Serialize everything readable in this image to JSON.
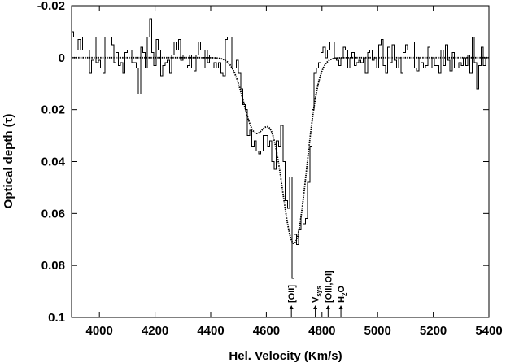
{
  "chart_data": {
    "type": "line",
    "title": "",
    "xlabel": "Hel. Velocity (Km/s)",
    "ylabel": "Optical depth (τ)",
    "xlim": [
      3900,
      5400
    ],
    "ylim": [
      -0.02,
      0.1
    ],
    "y_inverted": true,
    "grid": false,
    "x_ticks": [
      4000,
      4200,
      4400,
      4600,
      4800,
      5000,
      5200,
      5400
    ],
    "y_ticks": [
      -0.02,
      0,
      0.02,
      0.04,
      0.06,
      0.08,
      0.1
    ],
    "x_tick_labels": [
      "4000",
      "4200",
      "4400",
      "4600",
      "4800",
      "5000",
      "5200",
      "5400"
    ],
    "y_tick_labels": [
      "-0.02",
      "0",
      "0.02",
      "0.04",
      "0.06",
      "0.08",
      "0.1"
    ],
    "series": [
      {
        "kind": "histogram",
        "x": [
          3900,
          3908,
          3916,
          3924,
          3932,
          3940,
          3948,
          3956,
          3964,
          3972,
          3980,
          3988,
          3996,
          4004,
          4012,
          4020,
          4028,
          4036,
          4044,
          4052,
          4060,
          4068,
          4076,
          4084,
          4092,
          4100,
          4108,
          4116,
          4124,
          4132,
          4140,
          4148,
          4156,
          4164,
          4172,
          4180,
          4188,
          4196,
          4204,
          4212,
          4220,
          4228,
          4236,
          4244,
          4252,
          4260,
          4268,
          4276,
          4284,
          4292,
          4300,
          4308,
          4316,
          4324,
          4332,
          4340,
          4348,
          4356,
          4364,
          4372,
          4380,
          4388,
          4396,
          4404,
          4412,
          4420,
          4428,
          4436,
          4444,
          4452,
          4460,
          4468,
          4476,
          4484,
          4492,
          4500,
          4508,
          4516,
          4524,
          4532,
          4540,
          4548,
          4556,
          4564,
          4572,
          4580,
          4588,
          4596,
          4604,
          4612,
          4620,
          4628,
          4636,
          4644,
          4652,
          4660,
          4668,
          4676,
          4684,
          4692,
          4700,
          4708,
          4716,
          4724,
          4732,
          4740,
          4748,
          4756,
          4764,
          4772,
          4780,
          4788,
          4796,
          4804,
          4812,
          4820,
          4828,
          4836,
          4844,
          4852,
          4860,
          4868,
          4876,
          4884,
          4892,
          4900,
          4908,
          4916,
          4924,
          4932,
          4940,
          4948,
          4956,
          4964,
          4972,
          4980,
          4988,
          4996,
          5004,
          5012,
          5020,
          5028,
          5036,
          5044,
          5052,
          5060,
          5068,
          5076,
          5084,
          5092,
          5100,
          5108,
          5116,
          5124,
          5132,
          5140,
          5148,
          5156,
          5164,
          5172,
          5180,
          5188,
          5196,
          5204,
          5212,
          5220,
          5228,
          5236,
          5244,
          5252,
          5260,
          5268,
          5276,
          5284,
          5292,
          5300,
          5308,
          5316,
          5324,
          5332,
          5340,
          5348,
          5356,
          5364,
          5372,
          5380,
          5388,
          5396
        ],
        "y": [
          -0.01,
          -0.008,
          -0.003,
          -0.007,
          -0.003,
          -0.008,
          -0.003,
          -0.003,
          0.006,
          0.001,
          -0.008,
          0.002,
          0.001,
          0.004,
          0.006,
          -0.008,
          -0.008,
          -0.008,
          -0.005,
          0.002,
          -0.002,
          0.003,
          0.002,
          0.006,
          -0.002,
          -0.003,
          -0.003,
          0.002,
          0.002,
          0.004,
          0.014,
          -0.004,
          -0.002,
          0.004,
          -0.008,
          -0.015,
          -0.002,
          0.003,
          -0.007,
          -0.003,
          0.007,
          0.003,
          0.002,
          0.001,
          0.006,
          -0.001,
          -0.006,
          -0.003,
          -0.007,
          0.001,
          -0.001,
          0.004,
          0.003,
          -0.001,
          0.004,
          0.005,
          -0.001,
          -0.006,
          -0.003,
          0.004,
          -0.003,
          0.002,
          -0.001,
          0.004,
          0.002,
          0.004,
          0.002,
          0.006,
          0.007,
          -0.007,
          -0.008,
          -0.008,
          0.004,
          0.004,
          0.001,
          0.006,
          0.012,
          0.018,
          0.02,
          0.03,
          0.028,
          0.034,
          0.032,
          0.036,
          0.037,
          0.036,
          0.03,
          0.03,
          0.034,
          0.032,
          0.04,
          0.043,
          0.032,
          0.034,
          0.026,
          0.04,
          0.055,
          0.058,
          0.046,
          0.085,
          0.068,
          0.072,
          0.066,
          0.061,
          0.064,
          0.062,
          0.048,
          0.034,
          0.02,
          0.006,
          0.004,
          0.002,
          -0.002,
          -0.004,
          0.0,
          -0.003,
          -0.006,
          -0.006,
          0.0,
          0.001,
          0.003,
          0.0,
          -0.004,
          -0.003,
          0.004,
          0.0,
          -0.002,
          0.003,
          0.002,
          0.001,
          0.002,
          0.0,
          0.006,
          -0.002,
          -0.003,
          0.001,
          0.0,
          0.004,
          -0.005,
          -0.007,
          0.003,
          0.006,
          -0.004,
          0.002,
          -0.005,
          0.001,
          0.004,
          0.0,
          0.006,
          -0.002,
          -0.005,
          -0.003,
          -0.003,
          -0.006,
          0.004,
          0.005,
          0.0,
          0.002,
          0.004,
          0.003,
          -0.004,
          0.004,
          0.0,
          0.003,
          0.003,
          0.006,
          -0.003,
          0.003,
          -0.005,
          0.001,
          0.005,
          -0.002,
          0.004,
          0.004,
          0.002,
          0.003,
          0.0,
          0.003,
          -0.001,
          0.006,
          -0.008,
          0.002,
          0.012,
          0.003,
          -0.004,
          0.003,
          0.0
        ]
      },
      {
        "kind": "gaussian-fit",
        "style": "dotted",
        "baseline": 0,
        "components": [
          {
            "center": 4560,
            "amplitude": 0.028,
            "sigma": 42
          },
          {
            "center": 4705,
            "amplitude": 0.066,
            "sigma": 42
          },
          {
            "center": 4650,
            "amplitude": 0.014,
            "sigma": 38
          }
        ]
      }
    ],
    "markers": [
      {
        "label": "[OII]",
        "x": 4690
      },
      {
        "label": "V",
        "sub": "sys",
        "x": 4776
      },
      {
        "label": "[OIII,OI]",
        "x": 4822
      },
      {
        "label": "H",
        "sub": "2",
        "suffix": "O",
        "x": 4868
      }
    ]
  }
}
